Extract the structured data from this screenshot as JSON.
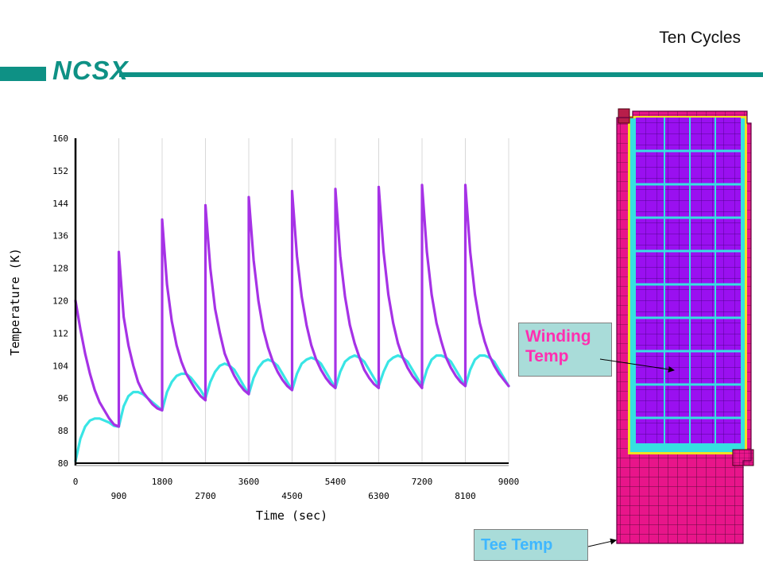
{
  "slide": {
    "title": "Ten Cycles",
    "logo": "NCSX"
  },
  "colors": {
    "accent": "#0e9185",
    "winding": "#a632e6",
    "tee": "#39e5e5"
  },
  "callouts": {
    "winding_line1": "Winding",
    "winding_line2": "Temp",
    "tee": "Tee Temp"
  },
  "chart_data": {
    "type": "line",
    "xlabel": "Time (sec)",
    "ylabel": "Temperature (K)",
    "xlim": [
      0,
      9000
    ],
    "ylim": [
      80,
      160
    ],
    "grid": "vertical",
    "x_ticks_row1": [
      0,
      1800,
      3600,
      5400,
      7200,
      9000
    ],
    "x_ticks_row2": [
      900,
      2700,
      4500,
      6300,
      8100
    ],
    "y_ticks": [
      80,
      88,
      96,
      104,
      112,
      120,
      128,
      136,
      144,
      152,
      160
    ],
    "series": [
      {
        "color": "#a632e6",
        "points": [
          [
            0,
            120
          ],
          [
            100,
            113
          ],
          [
            200,
            107
          ],
          [
            300,
            102
          ],
          [
            400,
            98
          ],
          [
            500,
            95
          ],
          [
            600,
            93
          ],
          [
            700,
            91
          ],
          [
            800,
            89.5
          ],
          [
            900,
            89
          ],
          [
            900,
            132
          ],
          [
            1000,
            116
          ],
          [
            1100,
            109
          ],
          [
            1200,
            104
          ],
          [
            1300,
            100
          ],
          [
            1400,
            97.5
          ],
          [
            1500,
            96
          ],
          [
            1600,
            94.5
          ],
          [
            1700,
            93.5
          ],
          [
            1800,
            93
          ],
          [
            1800,
            140
          ],
          [
            1900,
            124
          ],
          [
            2000,
            115
          ],
          [
            2100,
            109
          ],
          [
            2200,
            105
          ],
          [
            2300,
            102
          ],
          [
            2400,
            100
          ],
          [
            2500,
            98
          ],
          [
            2600,
            96.5
          ],
          [
            2700,
            95.5
          ],
          [
            2700,
            143.5
          ],
          [
            2800,
            128
          ],
          [
            2900,
            118
          ],
          [
            3000,
            112
          ],
          [
            3100,
            107
          ],
          [
            3200,
            104
          ],
          [
            3300,
            101.5
          ],
          [
            3400,
            99.5
          ],
          [
            3500,
            98
          ],
          [
            3600,
            97
          ],
          [
            3600,
            145.5
          ],
          [
            3700,
            130
          ],
          [
            3800,
            120
          ],
          [
            3900,
            113
          ],
          [
            4000,
            108.5
          ],
          [
            4100,
            105
          ],
          [
            4200,
            102.5
          ],
          [
            4300,
            100.5
          ],
          [
            4400,
            99
          ],
          [
            4500,
            98
          ],
          [
            4500,
            147
          ],
          [
            4600,
            131
          ],
          [
            4700,
            121
          ],
          [
            4800,
            114
          ],
          [
            4900,
            109
          ],
          [
            5000,
            105.5
          ],
          [
            5100,
            103
          ],
          [
            5200,
            101
          ],
          [
            5300,
            99.5
          ],
          [
            5400,
            98.5
          ],
          [
            5400,
            147.5
          ],
          [
            5500,
            131
          ],
          [
            5600,
            121
          ],
          [
            5700,
            114
          ],
          [
            5800,
            109.5
          ],
          [
            5900,
            106
          ],
          [
            6000,
            103
          ],
          [
            6100,
            101
          ],
          [
            6200,
            99.5
          ],
          [
            6300,
            98.5
          ],
          [
            6300,
            148
          ],
          [
            6400,
            132
          ],
          [
            6500,
            121.5
          ],
          [
            6600,
            114.5
          ],
          [
            6700,
            109.5
          ],
          [
            6800,
            106
          ],
          [
            6900,
            103.5
          ],
          [
            7000,
            101.5
          ],
          [
            7100,
            100
          ],
          [
            7200,
            98.5
          ],
          [
            7200,
            148.5
          ],
          [
            7300,
            132
          ],
          [
            7400,
            121.5
          ],
          [
            7500,
            114.5
          ],
          [
            7600,
            110
          ],
          [
            7700,
            106
          ],
          [
            7800,
            103.5
          ],
          [
            7900,
            101.5
          ],
          [
            8000,
            100
          ],
          [
            8100,
            99
          ],
          [
            8100,
            148.5
          ],
          [
            8200,
            132
          ],
          [
            8300,
            121.5
          ],
          [
            8400,
            114.5
          ],
          [
            8500,
            110
          ],
          [
            8600,
            106.5
          ],
          [
            8700,
            104
          ],
          [
            8800,
            102
          ],
          [
            8900,
            100.5
          ],
          [
            9000,
            99
          ]
        ]
      },
      {
        "color": "#39e5e5",
        "points": [
          [
            0,
            80.5
          ],
          [
            100,
            86
          ],
          [
            200,
            89
          ],
          [
            300,
            90.5
          ],
          [
            400,
            91
          ],
          [
            500,
            91
          ],
          [
            600,
            90.5
          ],
          [
            700,
            90
          ],
          [
            800,
            89.2
          ],
          [
            900,
            89
          ],
          [
            1000,
            94
          ],
          [
            1100,
            96.5
          ],
          [
            1200,
            97.5
          ],
          [
            1300,
            97.5
          ],
          [
            1400,
            97
          ],
          [
            1500,
            96
          ],
          [
            1600,
            95
          ],
          [
            1700,
            94
          ],
          [
            1800,
            93
          ],
          [
            1900,
            97.5
          ],
          [
            2000,
            100
          ],
          [
            2100,
            101.5
          ],
          [
            2200,
            102
          ],
          [
            2300,
            102
          ],
          [
            2400,
            101
          ],
          [
            2500,
            99.5
          ],
          [
            2600,
            98
          ],
          [
            2700,
            96
          ],
          [
            2800,
            100
          ],
          [
            2900,
            102.5
          ],
          [
            3000,
            104
          ],
          [
            3100,
            104.5
          ],
          [
            3200,
            104
          ],
          [
            3300,
            103
          ],
          [
            3400,
            101
          ],
          [
            3500,
            99
          ],
          [
            3600,
            97
          ],
          [
            3700,
            101
          ],
          [
            3800,
            103.5
          ],
          [
            3900,
            105
          ],
          [
            4000,
            105.5
          ],
          [
            4100,
            105
          ],
          [
            4200,
            104
          ],
          [
            4300,
            102
          ],
          [
            4400,
            100
          ],
          [
            4500,
            98
          ],
          [
            4600,
            102
          ],
          [
            4700,
            104.5
          ],
          [
            4800,
            105.5
          ],
          [
            4900,
            106
          ],
          [
            5000,
            105.5
          ],
          [
            5100,
            104.5
          ],
          [
            5200,
            102.5
          ],
          [
            5300,
            100.5
          ],
          [
            5400,
            98.5
          ],
          [
            5500,
            102.5
          ],
          [
            5600,
            105
          ],
          [
            5700,
            106
          ],
          [
            5800,
            106.5
          ],
          [
            5900,
            106
          ],
          [
            6000,
            105
          ],
          [
            6100,
            103
          ],
          [
            6200,
            101
          ],
          [
            6300,
            99
          ],
          [
            6400,
            102.5
          ],
          [
            6500,
            105
          ],
          [
            6600,
            106
          ],
          [
            6700,
            106.5
          ],
          [
            6800,
            106
          ],
          [
            6900,
            105
          ],
          [
            7000,
            103
          ],
          [
            7100,
            101
          ],
          [
            7200,
            99
          ],
          [
            7300,
            103
          ],
          [
            7400,
            105.5
          ],
          [
            7500,
            106.5
          ],
          [
            7600,
            106.5
          ],
          [
            7700,
            106
          ],
          [
            7800,
            105
          ],
          [
            7900,
            103
          ],
          [
            8000,
            101
          ],
          [
            8100,
            99
          ],
          [
            8200,
            103
          ],
          [
            8300,
            105.5
          ],
          [
            8400,
            106.5
          ],
          [
            8500,
            106.5
          ],
          [
            8600,
            106
          ],
          [
            8700,
            105
          ],
          [
            8800,
            103
          ],
          [
            8900,
            101
          ],
          [
            9000,
            99
          ]
        ]
      }
    ]
  }
}
